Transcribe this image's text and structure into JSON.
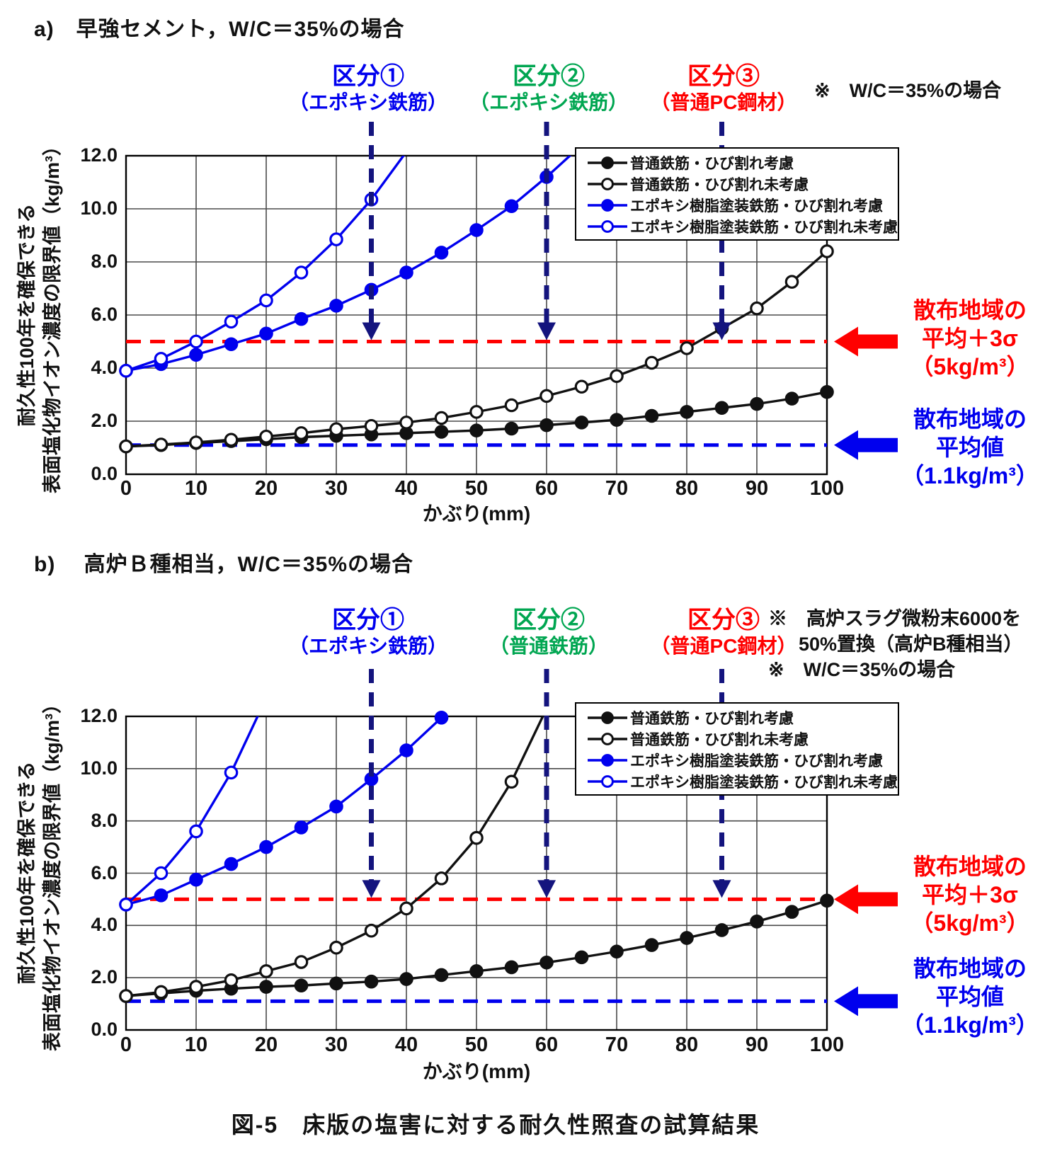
{
  "page": {
    "caption": "図-5　床版の塩害に対する耐久性照査の試算結果"
  },
  "colors": {
    "blue": "#0000ee",
    "navy": "#14147e",
    "red": "#ff0000",
    "green": "#00a651",
    "black": "#111111"
  },
  "charts": [
    {
      "title": "a)　早強セメント，W/C＝35%の場合",
      "kubun": [
        {
          "line1": "区分①",
          "line2": "（エポキシ鉄筋）",
          "color": "blue"
        },
        {
          "line1": "区分②",
          "line2": "（エポキシ鉄筋）",
          "color": "green"
        },
        {
          "line1": "区分③",
          "line2": "（普通PC鋼材）",
          "color": "red"
        }
      ],
      "notes": [
        "※　W/C＝35%の場合"
      ],
      "annotations_right": {
        "red": [
          "散布地域の",
          "平均＋3σ",
          "（5kg/m³）"
        ],
        "blue": [
          "散布地域の",
          "平均値",
          "（1.1kg/m³）"
        ]
      },
      "chart_data": {
        "type": "line",
        "xlabel": "かぶり(mm)",
        "ylabel_line1": "耐久性100年を確保できる",
        "ylabel_line2": "表面塩化物イオン濃度の限界値（kg/m³）",
        "xlim": [
          0,
          100
        ],
        "ylim": [
          0,
          12
        ],
        "xticks": [
          0,
          10,
          20,
          30,
          40,
          50,
          60,
          70,
          80,
          90,
          100
        ],
        "yticks": [
          0,
          2,
          4,
          6,
          8,
          10,
          12
        ],
        "grid": true,
        "legend_position": "upper right",
        "x": [
          0,
          5,
          10,
          15,
          20,
          25,
          30,
          35,
          40,
          45,
          50,
          55,
          60,
          65,
          70,
          75,
          80,
          85,
          90,
          95,
          100
        ],
        "series": [
          {
            "name": "普通鉄筋・ひび割れ考慮",
            "color": "black",
            "marker": "filled",
            "values": [
              1.05,
              1.1,
              1.18,
              1.25,
              1.32,
              1.4,
              1.45,
              1.5,
              1.55,
              1.6,
              1.65,
              1.72,
              1.85,
              1.95,
              2.05,
              2.2,
              2.35,
              2.5,
              2.65,
              2.85,
              3.1
            ]
          },
          {
            "name": "普通鉄筋・ひび割れ未考慮",
            "color": "black",
            "marker": "open",
            "values": [
              1.05,
              1.12,
              1.2,
              1.3,
              1.42,
              1.55,
              1.7,
              1.82,
              1.95,
              2.12,
              2.35,
              2.6,
              2.95,
              3.3,
              3.7,
              4.2,
              4.75,
              5.5,
              6.25,
              7.25,
              8.4
            ]
          },
          {
            "name": "エポキシ樹脂塗装鉄筋・ひび割れ考慮",
            "color": "blue",
            "marker": "filled",
            "values": [
              3.9,
              4.15,
              4.5,
              4.9,
              5.3,
              5.85,
              6.35,
              6.95,
              7.6,
              8.35,
              9.2,
              10.1,
              11.2,
              12.4
            ]
          },
          {
            "name": "エポキシ樹脂塗装鉄筋・ひび割れ未考慮",
            "color": "blue",
            "marker": "open",
            "values": [
              3.9,
              4.35,
              5.0,
              5.75,
              6.55,
              7.6,
              8.85,
              10.35,
              12.15
            ]
          }
        ],
        "hlines": [
          {
            "y": 5.0,
            "color": "red",
            "meaning": "散布地域の平均＋3σ（5kg/m³）"
          },
          {
            "y": 1.1,
            "color": "blue",
            "meaning": "散布地域の平均値（1.1kg/m³）"
          }
        ],
        "arrows_x": [
          35,
          60,
          85
        ]
      }
    },
    {
      "title": "b)　 高炉Ｂ種相当，W/C＝35%の場合",
      "kubun": [
        {
          "line1": "区分①",
          "line2": "（エポキシ鉄筋）",
          "color": "blue"
        },
        {
          "line1": "区分②",
          "line2": "（普通鉄筋）",
          "color": "green"
        },
        {
          "line1": "区分③",
          "line2": "（普通PC鋼材）",
          "color": "red"
        }
      ],
      "notes": [
        "※　高炉スラグ微粉末6000を",
        "50%置換（高炉B種相当）",
        "※　W/C＝35%の場合"
      ],
      "annotations_right": {
        "red": [
          "散布地域の",
          "平均＋3σ",
          "（5kg/m³）"
        ],
        "blue": [
          "散布地域の",
          "平均値",
          "（1.1kg/m³）"
        ]
      },
      "chart_data": {
        "type": "line",
        "xlabel": "かぶり(mm)",
        "ylabel_line1": "耐久性100年を確保できる",
        "ylabel_line2": "表面塩化物イオン濃度の限界値（kg/m³）",
        "xlim": [
          0,
          100
        ],
        "ylim": [
          0,
          12
        ],
        "xticks": [
          0,
          10,
          20,
          30,
          40,
          50,
          60,
          70,
          80,
          90,
          100
        ],
        "yticks": [
          0,
          2,
          4,
          6,
          8,
          10,
          12
        ],
        "grid": true,
        "legend_position": "upper right",
        "x": [
          0,
          5,
          10,
          15,
          20,
          25,
          30,
          35,
          40,
          45,
          50,
          55,
          60,
          65,
          70,
          75,
          80,
          85,
          90,
          95,
          100
        ],
        "series": [
          {
            "name": "普通鉄筋・ひび割れ考慮",
            "color": "black",
            "marker": "filled",
            "values": [
              1.3,
              1.4,
              1.5,
              1.58,
              1.65,
              1.7,
              1.78,
              1.85,
              1.95,
              2.1,
              2.25,
              2.4,
              2.58,
              2.78,
              3.0,
              3.25,
              3.52,
              3.82,
              4.15,
              4.52,
              4.95
            ]
          },
          {
            "name": "普通鉄筋・ひび割れ未考慮",
            "color": "black",
            "marker": "open",
            "values": [
              1.3,
              1.45,
              1.65,
              1.9,
              2.25,
              2.6,
              3.15,
              3.8,
              4.65,
              5.8,
              7.35,
              9.5,
              12.3
            ]
          },
          {
            "name": "エポキシ樹脂塗装鉄筋・ひび割れ考慮",
            "color": "blue",
            "marker": "filled",
            "values": [
              4.8,
              5.15,
              5.75,
              6.35,
              7.0,
              7.75,
              8.55,
              9.6,
              10.7,
              11.95
            ]
          },
          {
            "name": "エポキシ樹脂塗装鉄筋・ひび割れ未考慮",
            "color": "blue",
            "marker": "open",
            "values": [
              4.8,
              6.0,
              7.6,
              9.85,
              12.7
            ]
          }
        ],
        "hlines": [
          {
            "y": 5.0,
            "color": "red",
            "meaning": "散布地域の平均＋3σ（5kg/m³）"
          },
          {
            "y": 1.1,
            "color": "blue",
            "meaning": "散布地域の平均値（1.1kg/m³）"
          }
        ],
        "arrows_x": [
          35,
          60,
          85
        ]
      }
    }
  ]
}
